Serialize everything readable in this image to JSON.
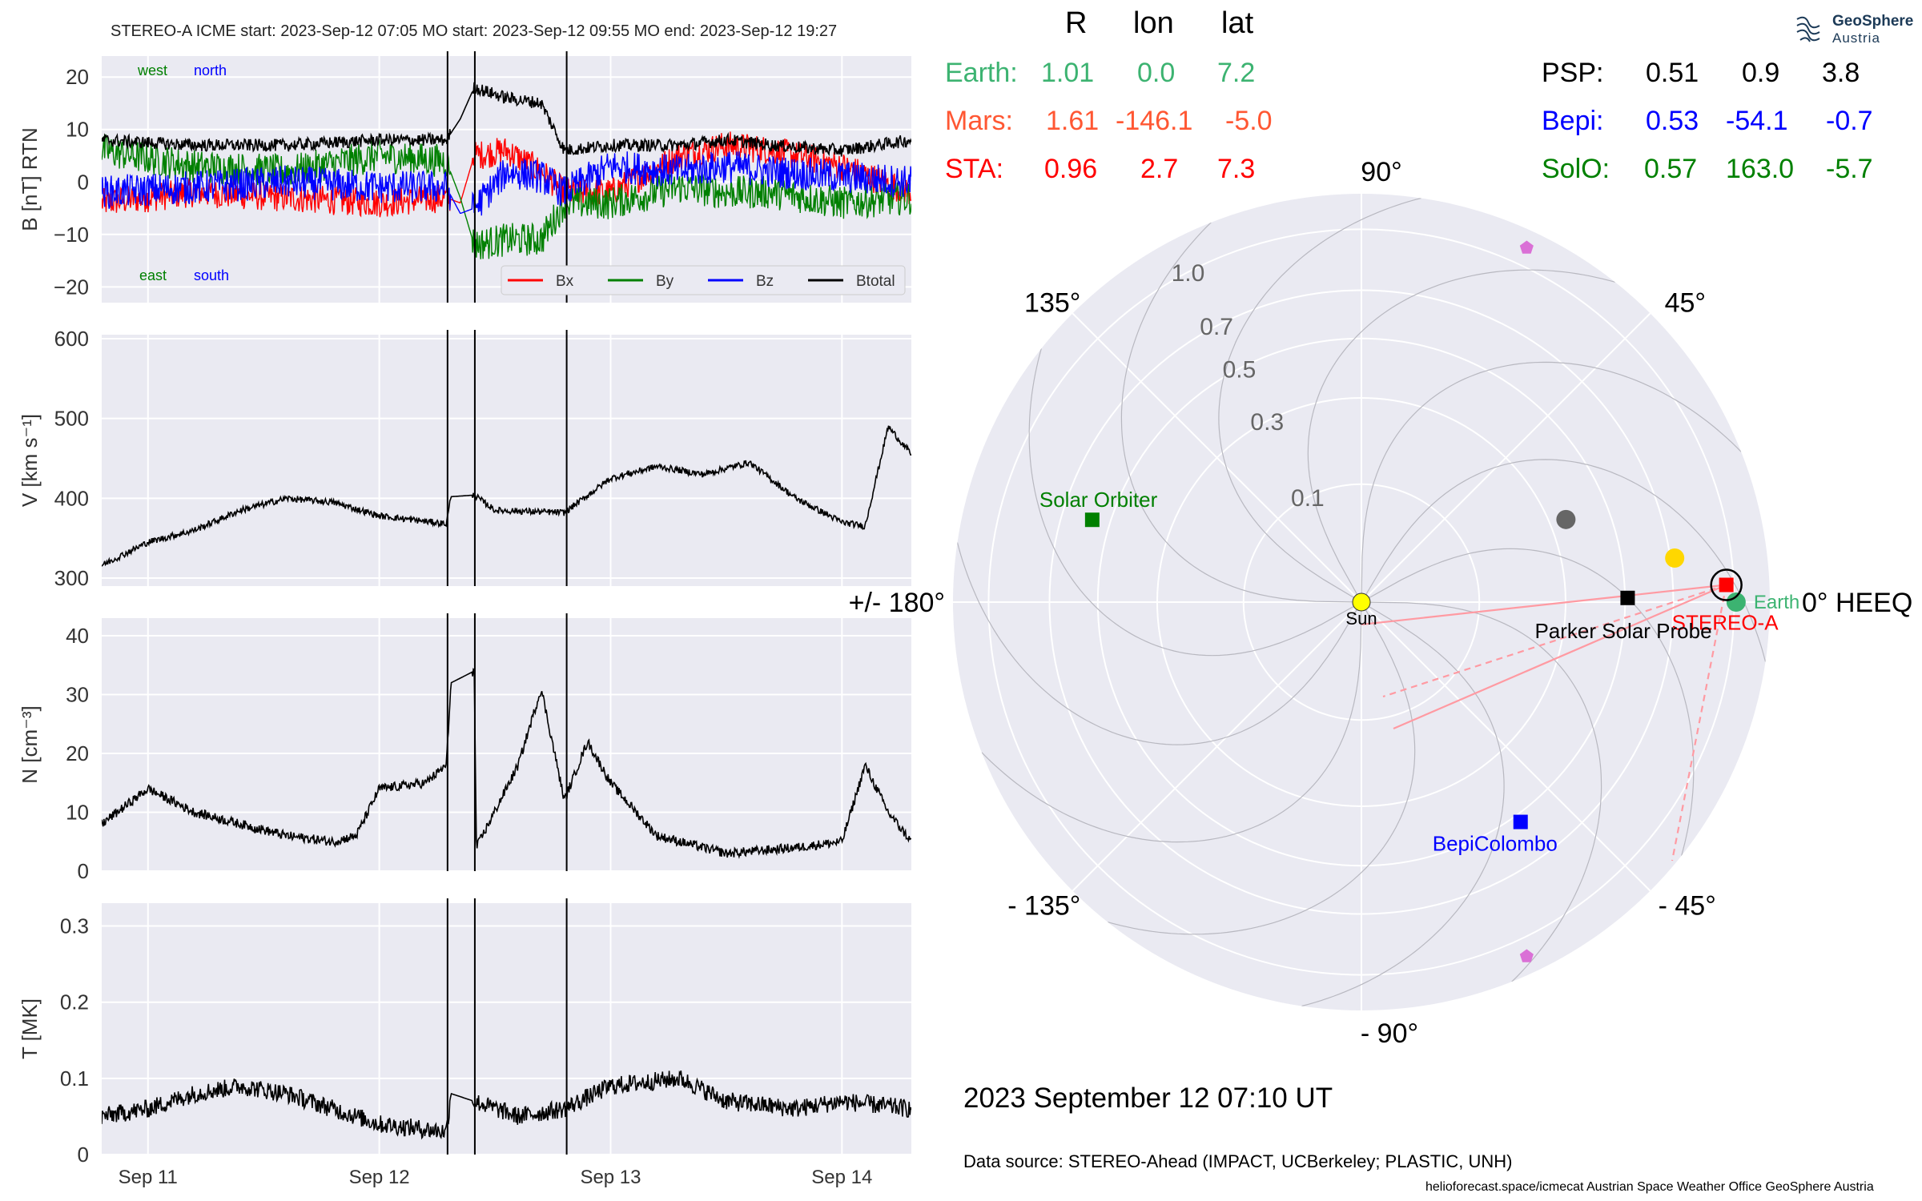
{
  "ts_header": "STEREO-A    ICME start: 2023-Sep-12 07:05   MO start: 2023-Sep-12 09:55   MO end: 2023-Sep-12 19:27",
  "timestamp": "2023 September 12  07:10 UT",
  "datasource": "Data source: STEREO-Ahead (IMPACT, UCBerkeley; PLASTIC, UNH)",
  "footer": "helioforecast.space/icmecat   Austrian Space Weather Office   GeoSphere Austria",
  "logo": {
    "name": "GeoSphere",
    "sub": "Austria"
  },
  "colors": {
    "bx": "#ff0000",
    "by": "#008000",
    "bz": "#0000ff",
    "btotal": "#000000",
    "earth": "#3cb371",
    "mars": "#ff5733",
    "sta": "#ff0000",
    "psp": "#000000",
    "bepi": "#0000ff",
    "solo": "#008000",
    "panel_bg": "#eaeaf2",
    "pink_line": "#ff9aa2",
    "violet": "#da70d6",
    "gold": "#ffd700",
    "gray_planet": "#666666"
  },
  "table": {
    "headers": [
      "R",
      "lon",
      "lat"
    ],
    "left": [
      {
        "name": "Earth:",
        "r": "1.01",
        "lon": "0.0",
        "lat": "7.2",
        "color": "#3cb371"
      },
      {
        "name": "Mars:",
        "r": "1.61",
        "lon": "-146.1",
        "lat": "-5.0",
        "color": "#ff5733"
      },
      {
        "name": "STA:",
        "r": "0.96",
        "lon": "2.7",
        "lat": "7.3",
        "color": "#ff0000"
      }
    ],
    "right": [
      {
        "name": "PSP:",
        "r": "0.51",
        "lon": "0.9",
        "lat": "3.8",
        "color": "#000000"
      },
      {
        "name": "Bepi:",
        "r": "0.53",
        "lon": "-54.1",
        "lat": "-0.7",
        "color": "#0000ff"
      },
      {
        "name": "SolO:",
        "r": "0.57",
        "lon": "163.0",
        "lat": "-5.7",
        "color": "#008000"
      }
    ]
  },
  "chart_data": [
    {
      "type": "line",
      "panel": "B",
      "ylabel": "B [nT] RTN",
      "ylim": [
        -23,
        24
      ],
      "yticks": [
        -20,
        -10,
        0,
        10,
        20
      ],
      "xticks": [
        "Sep 11",
        "Sep 12",
        "Sep 13",
        "Sep 14"
      ],
      "xrange_days": [
        10.8,
        14.3
      ],
      "events": [
        "2023-Sep-12 07:05",
        "2023-Sep-12 09:55",
        "2023-Sep-12 19:27"
      ],
      "annotations": {
        "west": "west",
        "north": "north",
        "east": "east",
        "south": "south"
      },
      "legend": {
        "placement": "lower-right",
        "entries": [
          "Bx",
          "By",
          "Bz",
          "Btotal"
        ]
      },
      "series": [
        {
          "name": "Bx",
          "color": "#ff0000",
          "points": [
            [
              10.8,
              -4
            ],
            [
              11.2,
              -2
            ],
            [
              11.6,
              -3
            ],
            [
              12.0,
              -4
            ],
            [
              12.29,
              -3
            ],
            [
              12.35,
              -4
            ],
            [
              12.41,
              5
            ],
            [
              12.55,
              6
            ],
            [
              12.7,
              2
            ],
            [
              12.8,
              -2
            ],
            [
              13.0,
              -2
            ],
            [
              13.3,
              5
            ],
            [
              13.5,
              7
            ],
            [
              13.7,
              6
            ],
            [
              14.0,
              3
            ],
            [
              14.3,
              -2
            ]
          ]
        },
        {
          "name": "By",
          "color": "#008000",
          "points": [
            [
              10.8,
              6
            ],
            [
              11.2,
              3
            ],
            [
              11.6,
              2
            ],
            [
              12.0,
              5
            ],
            [
              12.29,
              4
            ],
            [
              12.35,
              -3
            ],
            [
              12.41,
              -12
            ],
            [
              12.55,
              -11
            ],
            [
              12.7,
              -11
            ],
            [
              12.8,
              -4
            ],
            [
              13.0,
              -4
            ],
            [
              13.3,
              -1
            ],
            [
              13.5,
              -2
            ],
            [
              13.7,
              -2
            ],
            [
              14.0,
              -4
            ],
            [
              14.3,
              -3
            ]
          ]
        },
        {
          "name": "Bz",
          "color": "#0000ff",
          "points": [
            [
              10.8,
              -2
            ],
            [
              11.2,
              -1
            ],
            [
              11.6,
              0
            ],
            [
              12.0,
              -1
            ],
            [
              12.29,
              -1
            ],
            [
              12.35,
              -6
            ],
            [
              12.41,
              -5
            ],
            [
              12.55,
              2
            ],
            [
              12.7,
              1
            ],
            [
              12.8,
              -2
            ],
            [
              13.0,
              3
            ],
            [
              13.3,
              2
            ],
            [
              13.5,
              3
            ],
            [
              13.7,
              2
            ],
            [
              14.0,
              1
            ],
            [
              14.3,
              0
            ]
          ]
        },
        {
          "name": "Btotal",
          "color": "#000000",
          "points": [
            [
              10.8,
              8
            ],
            [
              11.2,
              7
            ],
            [
              11.6,
              7
            ],
            [
              12.0,
              8
            ],
            [
              12.29,
              8
            ],
            [
              12.35,
              12
            ],
            [
              12.41,
              18
            ],
            [
              12.55,
              16
            ],
            [
              12.7,
              15
            ],
            [
              12.8,
              6
            ],
            [
              13.0,
              7
            ],
            [
              13.3,
              7
            ],
            [
              13.5,
              8
            ],
            [
              13.7,
              7
            ],
            [
              14.0,
              6
            ],
            [
              14.3,
              8
            ]
          ]
        }
      ]
    },
    {
      "type": "line",
      "panel": "V",
      "ylabel": "V [km s⁻¹]",
      "ylim": [
        290,
        605
      ],
      "yticks": [
        300,
        400,
        500,
        600
      ],
      "series": [
        {
          "name": "",
          "color": "#000000",
          "points": [
            [
              10.8,
              316
            ],
            [
              11.0,
              345
            ],
            [
              11.2,
              360
            ],
            [
              11.4,
              385
            ],
            [
              11.6,
              400
            ],
            [
              11.8,
              395
            ],
            [
              12.0,
              378
            ],
            [
              12.29,
              368
            ],
            [
              12.31,
              402
            ],
            [
              12.41,
              404
            ],
            [
              12.5,
              385
            ],
            [
              12.8,
              382
            ],
            [
              13.0,
              425
            ],
            [
              13.2,
              440
            ],
            [
              13.4,
              430
            ],
            [
              13.6,
              445
            ],
            [
              13.8,
              400
            ],
            [
              14.0,
              370
            ],
            [
              14.1,
              365
            ],
            [
              14.2,
              490
            ],
            [
              14.3,
              455
            ]
          ]
        }
      ]
    },
    {
      "type": "line",
      "panel": "N",
      "ylabel": "N [cm⁻³]",
      "ylim": [
        0,
        43
      ],
      "yticks": [
        0,
        10,
        20,
        30,
        40
      ],
      "series": [
        {
          "name": "",
          "color": "#000000",
          "points": [
            [
              10.8,
              8
            ],
            [
              11.0,
              14
            ],
            [
              11.2,
              10
            ],
            [
              11.4,
              8
            ],
            [
              11.6,
              6
            ],
            [
              11.8,
              5
            ],
            [
              11.9,
              6
            ],
            [
              12.0,
              14
            ],
            [
              12.2,
              15
            ],
            [
              12.29,
              18
            ],
            [
              12.31,
              32
            ],
            [
              12.41,
              34
            ],
            [
              12.42,
              4
            ],
            [
              12.6,
              18
            ],
            [
              12.7,
              31
            ],
            [
              12.8,
              12
            ],
            [
              12.9,
              22
            ],
            [
              13.0,
              15
            ],
            [
              13.2,
              6
            ],
            [
              13.5,
              3
            ],
            [
              13.8,
              4
            ],
            [
              14.0,
              5
            ],
            [
              14.1,
              18
            ],
            [
              14.2,
              10
            ],
            [
              14.3,
              5
            ]
          ]
        }
      ]
    },
    {
      "type": "line",
      "panel": "T",
      "ylabel": "T [MK]",
      "ylim": [
        0,
        0.33
      ],
      "yticks": [
        0.0,
        0.1,
        0.2,
        0.3
      ],
      "series": [
        {
          "name": "",
          "color": "#000000",
          "points": [
            [
              10.8,
              0.05
            ],
            [
              11.0,
              0.06
            ],
            [
              11.2,
              0.08
            ],
            [
              11.4,
              0.09
            ],
            [
              11.6,
              0.08
            ],
            [
              11.8,
              0.06
            ],
            [
              12.0,
              0.04
            ],
            [
              12.29,
              0.03
            ],
            [
              12.31,
              0.08
            ],
            [
              12.41,
              0.07
            ],
            [
              12.6,
              0.05
            ],
            [
              12.8,
              0.06
            ],
            [
              13.0,
              0.09
            ],
            [
              13.3,
              0.1
            ],
            [
              13.5,
              0.07
            ],
            [
              13.8,
              0.06
            ],
            [
              14.0,
              0.07
            ],
            [
              14.3,
              0.06
            ]
          ]
        }
      ]
    },
    {
      "type": "polar",
      "panel": "orbit",
      "angle_labels": {
        "a0": "0° HEEQ",
        "a45": "45°",
        "a90": "90°",
        "a135": "135°",
        "a180": "+/- 180°",
        "am135": "- 135°",
        "am90": "- 90°",
        "am45": "- 45°"
      },
      "radial_labels": [
        "0.1",
        "0.3",
        "0.5",
        "0.7",
        "1.0"
      ],
      "objects": [
        {
          "name": "Sun",
          "r": 0.0,
          "lon": 0.0,
          "color": "#ffff00",
          "marker": "circle"
        },
        {
          "name": "Earth",
          "r": 1.01,
          "lon": 0.0,
          "color": "#3cb371",
          "marker": "circle"
        },
        {
          "name": "STEREO-A",
          "r": 0.96,
          "lon": 2.7,
          "color": "#ff0000",
          "marker": "square"
        },
        {
          "name": "Parker Solar Probe",
          "r": 0.51,
          "lon": 0.9,
          "color": "#000000",
          "marker": "square"
        },
        {
          "name": "BepiColombo",
          "r": 0.53,
          "lon": -54.1,
          "color": "#0000ff",
          "marker": "square"
        },
        {
          "name": "Solar Orbiter",
          "r": 0.57,
          "lon": 163.0,
          "color": "#008000",
          "marker": "square"
        },
        {
          "name": "",
          "r": 0.72,
          "lon": 8.0,
          "color": "#ffd700",
          "marker": "circle"
        },
        {
          "name": "",
          "r": 0.35,
          "lon": 22.0,
          "color": "#666666",
          "marker": "circle"
        },
        {
          "name": "",
          "r": 1.1,
          "lon": 65.0,
          "color": "#da70d6",
          "marker": "pentagon"
        },
        {
          "name": "",
          "r": 1.1,
          "lon": -65.0,
          "color": "#da70d6",
          "marker": "pentagon"
        }
      ]
    }
  ]
}
